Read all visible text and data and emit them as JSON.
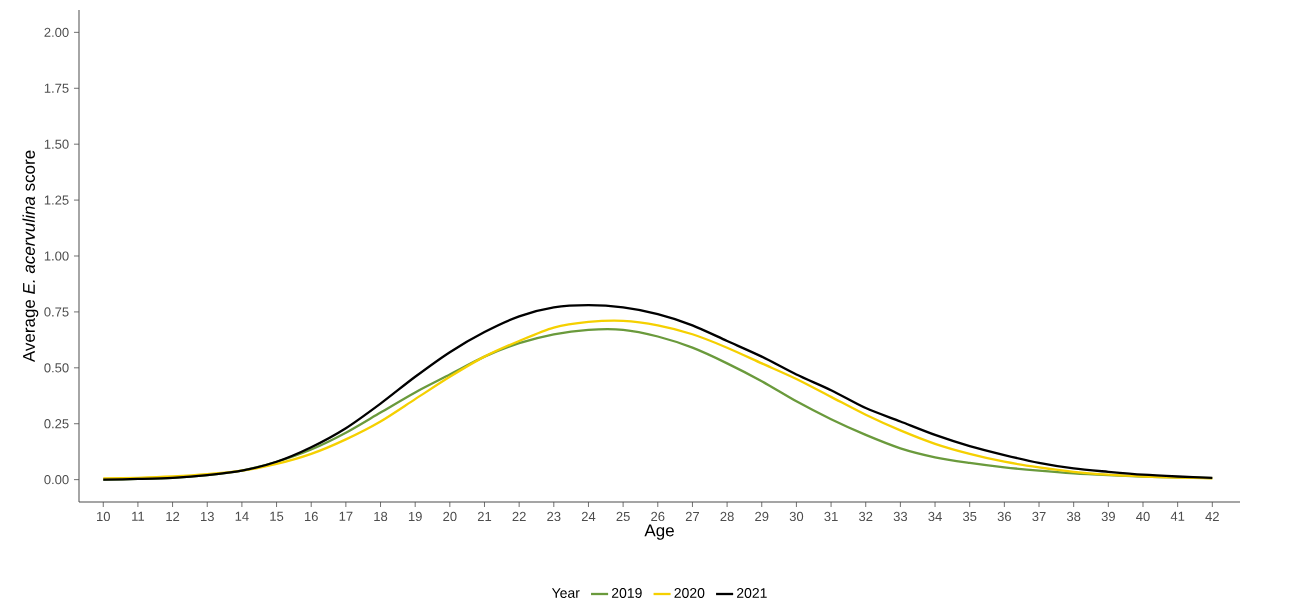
{
  "chart_data": {
    "type": "line",
    "xlabel": "Age",
    "ylabel": "Average *E. acervulina* score",
    "legend_title": "Year",
    "x": [
      10,
      11,
      12,
      13,
      14,
      15,
      16,
      17,
      18,
      19,
      20,
      21,
      22,
      23,
      24,
      25,
      26,
      27,
      28,
      29,
      30,
      31,
      32,
      33,
      34,
      35,
      36,
      37,
      38,
      39,
      40,
      41,
      42
    ],
    "series": [
      {
        "name": "2019",
        "color": "#6a9a3c",
        "values": [
          0,
          0.003,
          0.008,
          0.02,
          0.04,
          0.08,
          0.135,
          0.21,
          0.3,
          0.39,
          0.47,
          0.55,
          0.61,
          0.65,
          0.67,
          0.67,
          0.64,
          0.59,
          0.52,
          0.44,
          0.35,
          0.27,
          0.2,
          0.14,
          0.1,
          0.075,
          0.055,
          0.04,
          0.028,
          0.02,
          0.014,
          0.01,
          0.007
        ]
      },
      {
        "name": "2020",
        "color": "#f5d000",
        "values": [
          0.005,
          0.008,
          0.014,
          0.024,
          0.04,
          0.07,
          0.115,
          0.18,
          0.26,
          0.36,
          0.46,
          0.55,
          0.62,
          0.68,
          0.705,
          0.71,
          0.69,
          0.65,
          0.59,
          0.52,
          0.45,
          0.37,
          0.29,
          0.22,
          0.16,
          0.115,
          0.08,
          0.055,
          0.035,
          0.022,
          0.014,
          0.009,
          0.006
        ]
      },
      {
        "name": "2021",
        "color": "#000000",
        "values": [
          0,
          0.003,
          0.008,
          0.02,
          0.04,
          0.08,
          0.145,
          0.23,
          0.34,
          0.46,
          0.57,
          0.66,
          0.73,
          0.77,
          0.78,
          0.77,
          0.74,
          0.69,
          0.62,
          0.55,
          0.47,
          0.4,
          0.32,
          0.26,
          0.2,
          0.15,
          0.11,
          0.075,
          0.05,
          0.035,
          0.022,
          0.014,
          0.008
        ]
      }
    ],
    "xlim": [
      9.3,
      42.8
    ],
    "ylim": [
      -0.1,
      2.1
    ],
    "xticks": [
      10,
      11,
      12,
      13,
      14,
      15,
      16,
      17,
      18,
      19,
      20,
      21,
      22,
      23,
      24,
      25,
      26,
      27,
      28,
      29,
      30,
      31,
      32,
      33,
      34,
      35,
      36,
      37,
      38,
      39,
      40,
      41,
      42
    ],
    "yticks": [
      {
        "value": 0,
        "label": "0.00"
      },
      {
        "value": 0.25,
        "label": "0.25"
      },
      {
        "value": 0.5,
        "label": "0.50"
      },
      {
        "value": 0.75,
        "label": "0.75"
      },
      {
        "value": 1,
        "label": "1.00"
      },
      {
        "value": 1.25,
        "label": "1.25"
      },
      {
        "value": 1.5,
        "label": "1.50"
      },
      {
        "value": 1.75,
        "label": "1.75"
      },
      {
        "value": 2,
        "label": "2.00"
      }
    ],
    "grid": false,
    "legend": "bottom",
    "marker": "none",
    "line_style": "solid"
  }
}
